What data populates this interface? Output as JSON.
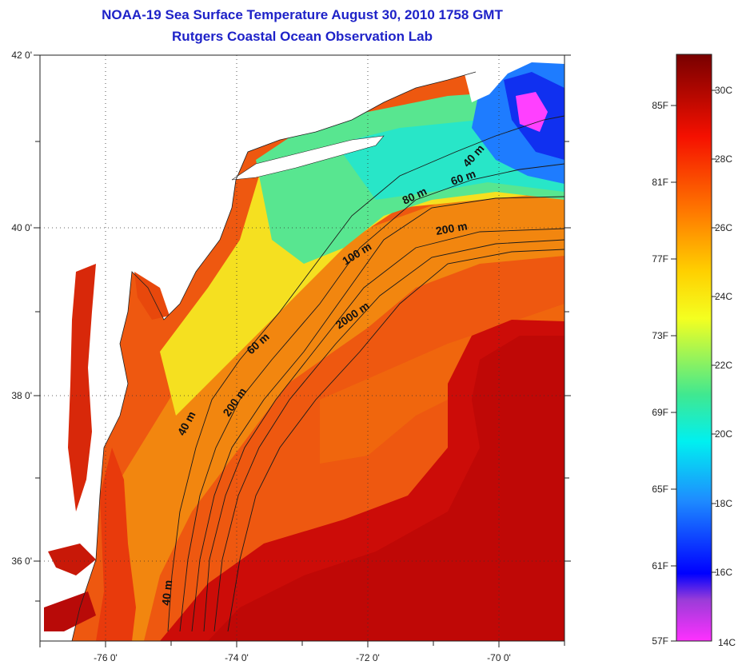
{
  "header": {
    "title": "NOAA-19 Sea Surface Temperature August 30, 2010 1758 GMT",
    "subtitle": "Rutgers Coastal Ocean Observation Lab"
  },
  "axes": {
    "lon_ticks": [
      "-76 0'",
      "-74 0'",
      "-72 0'",
      "-70 0'"
    ],
    "lat_ticks": [
      "42 0'",
      "40 0'",
      "38 0'",
      "36 0'"
    ]
  },
  "depth_labels": [
    "40 m",
    "60 m",
    "80 m",
    "200 m",
    "100 m",
    "2000 m",
    "60 m",
    "200 m",
    "40 m",
    "40 m"
  ],
  "colorbar": {
    "fahrenheit": [
      "85F",
      "81F",
      "77F",
      "73F",
      "69F",
      "65F",
      "61F",
      "57F"
    ],
    "celsius": [
      "30C",
      "28C",
      "26C",
      "24C",
      "22C",
      "20C",
      "18C",
      "16C",
      "14C"
    ]
  },
  "colors": {
    "title": "#1e22c8",
    "land": "#ffffff",
    "warm": "#e01a0a",
    "gulf_stream": "#c40808",
    "shelf": "#f07a10",
    "cool": "#28e6b4"
  }
}
